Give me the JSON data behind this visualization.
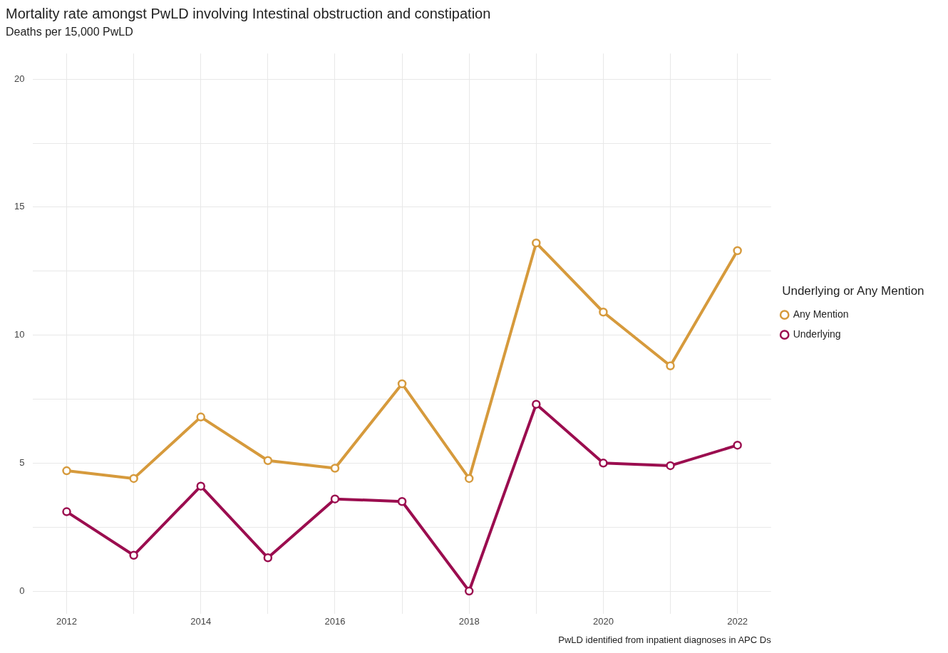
{
  "chart_data": {
    "type": "line",
    "title": "Mortality rate amongst PwLD involving Intestinal obstruction and constipation",
    "subtitle": "Deaths per 15,000 PwLD",
    "legend_title": "Underlying or Any Mention",
    "annotations": [
      "PwLD identified from inpatient diagnoses in APC Ds"
    ],
    "x": [
      2012,
      2013,
      2014,
      2015,
      2016,
      2017,
      2018,
      2019,
      2020,
      2021,
      2022
    ],
    "series": [
      {
        "name": "Any Mention",
        "color": "#d69a3c",
        "values": [
          4.7,
          4.4,
          6.8,
          5.1,
          4.8,
          8.1,
          4.4,
          13.6,
          10.9,
          8.8,
          13.3
        ]
      },
      {
        "name": "Underlying",
        "color": "#9b0d4f",
        "values": [
          3.1,
          1.4,
          4.1,
          1.3,
          3.6,
          3.5,
          0,
          7.3,
          5.0,
          4.9,
          5.7
        ]
      }
    ],
    "xlim": [
      2011.5,
      2022.5
    ],
    "ylim": [
      -0.9,
      21
    ],
    "xticks": [
      2012,
      {
        "value": 2013,
        "label": null
      },
      2014,
      {
        "value": 2015,
        "label": null
      },
      2016,
      {
        "value": 2017,
        "label": null
      },
      2018,
      {
        "value": 2019,
        "label": null
      },
      2020,
      {
        "value": 2021,
        "label": null
      },
      2022
    ],
    "yticks": [
      0,
      {
        "value": 2.5,
        "label": null
      },
      5,
      {
        "value": 7.5,
        "label": null
      },
      10,
      {
        "value": 12.5,
        "label": null
      },
      15,
      {
        "value": 17.5,
        "label": null
      },
      20
    ],
    "grid": true,
    "legend": "right",
    "marker": "circle",
    "line_style": "solid"
  }
}
